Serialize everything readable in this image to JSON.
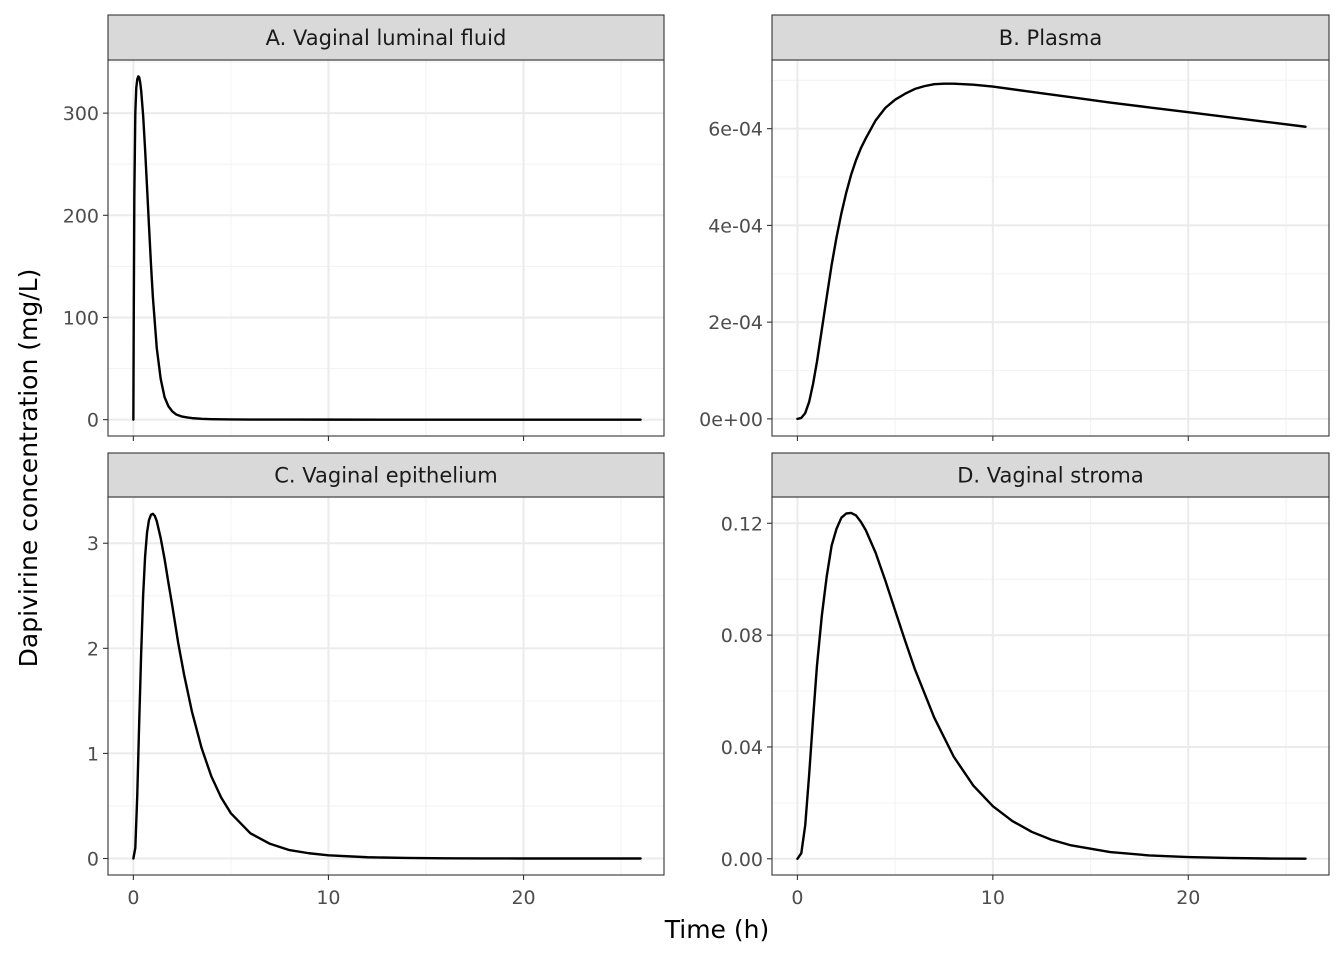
{
  "figure": {
    "xlabel": "Time (h)",
    "ylabel": "Dapivirine concentration (mg/L)"
  },
  "chart_data": [
    {
      "type": "line",
      "title": "A. Vaginal luminal fluid",
      "xlim": [
        -1.3,
        27.2
      ],
      "ylim": [
        -16,
        352
      ],
      "x_ticks": [
        0,
        10,
        20
      ],
      "x_tick_labels": [
        "0",
        "10",
        "20"
      ],
      "y_ticks": [
        0,
        100,
        200,
        300
      ],
      "y_tick_labels": [
        "0",
        "100",
        "200",
        "300"
      ],
      "series": [
        {
          "x": [
            0,
            0.02,
            0.05,
            0.1,
            0.15,
            0.2,
            0.25,
            0.3,
            0.35,
            0.4,
            0.5,
            0.6,
            0.7,
            0.8,
            0.9,
            1.0,
            1.2,
            1.4,
            1.6,
            1.8,
            2.0,
            2.2,
            2.5,
            2.8,
            3.0,
            3.5,
            4.0,
            5.0,
            6.0,
            8.0,
            10.0,
            15.0,
            20.0,
            26.0
          ],
          "y": [
            0,
            100,
            220,
            300,
            325,
            333,
            336,
            335,
            330,
            322,
            298,
            265,
            228,
            190,
            153,
            120,
            70,
            40,
            22,
            13,
            8,
            5,
            3,
            2,
            1.5,
            0.8,
            0.5,
            0.2,
            0.1,
            0.05,
            0.02,
            0,
            0,
            0
          ]
        }
      ]
    },
    {
      "type": "line",
      "title": "B. Plasma",
      "xlim": [
        -1.3,
        27.2
      ],
      "ylim": [
        -3.54e-05,
        0.000742
      ],
      "x_ticks": [
        0,
        10,
        20
      ],
      "x_tick_labels": [
        "0",
        "10",
        "20"
      ],
      "y_ticks": [
        0,
        0.0002,
        0.0004,
        0.0006
      ],
      "y_tick_labels": [
        "0e+00",
        "2e-04",
        "4e-04",
        "6e-04"
      ],
      "series": [
        {
          "x": [
            0,
            0.2,
            0.4,
            0.6,
            0.8,
            1.0,
            1.25,
            1.5,
            1.75,
            2.0,
            2.25,
            2.5,
            2.75,
            3.0,
            3.25,
            3.5,
            4.0,
            4.5,
            5.0,
            5.5,
            6.0,
            6.5,
            7.0,
            7.5,
            8.0,
            9.0,
            10.0,
            12.0,
            14.0,
            16.0,
            18.0,
            20.0,
            22.0,
            24.0,
            26.0
          ],
          "y": [
            0,
            2e-06,
            1.2e-05,
            3.5e-05,
            7.2e-05,
            0.000118,
            0.000185,
            0.000252,
            0.000318,
            0.000375,
            0.000425,
            0.000468,
            0.000505,
            0.000535,
            0.00056,
            0.00058,
            0.000617,
            0.000643,
            0.00066,
            0.000672,
            0.000682,
            0.000688,
            0.000692,
            0.000693,
            0.000693,
            0.000691,
            0.000687,
            0.000676,
            0.000665,
            0.000654,
            0.000644,
            0.000634,
            0.000624,
            0.000614,
            0.000604
          ]
        }
      ]
    },
    {
      "type": "line",
      "title": "C. Vaginal epithelium",
      "xlim": [
        -1.3,
        27.2
      ],
      "ylim": [
        -0.157,
        3.44
      ],
      "x_ticks": [
        0,
        10,
        20
      ],
      "x_tick_labels": [
        "0",
        "10",
        "20"
      ],
      "y_ticks": [
        0,
        1,
        2,
        3
      ],
      "y_tick_labels": [
        "0",
        "1",
        "2",
        "3"
      ],
      "series": [
        {
          "x": [
            0,
            0.1,
            0.2,
            0.3,
            0.4,
            0.5,
            0.6,
            0.7,
            0.8,
            0.9,
            1.0,
            1.1,
            1.2,
            1.4,
            1.6,
            1.8,
            2.0,
            2.3,
            2.6,
            3.0,
            3.5,
            4.0,
            4.5,
            5.0,
            6.0,
            7.0,
            8.0,
            9.0,
            10.0,
            12.0,
            14.0,
            16.0,
            18.0,
            20.0,
            22.0,
            24.0,
            26.0
          ],
          "y": [
            0,
            0.1,
            0.6,
            1.3,
            1.95,
            2.5,
            2.87,
            3.1,
            3.22,
            3.27,
            3.28,
            3.26,
            3.21,
            3.05,
            2.85,
            2.62,
            2.4,
            2.05,
            1.75,
            1.4,
            1.05,
            0.78,
            0.58,
            0.43,
            0.24,
            0.14,
            0.08,
            0.05,
            0.03,
            0.012,
            0.005,
            0.002,
            0.001,
            0,
            0,
            0,
            0
          ]
        }
      ]
    },
    {
      "type": "line",
      "title": "D. Vaginal stroma",
      "xlim": [
        -1.3,
        27.2
      ],
      "ylim": [
        -0.0058,
        0.1294
      ],
      "x_ticks": [
        0,
        10,
        20
      ],
      "x_tick_labels": [
        "0",
        "10",
        "20"
      ],
      "y_ticks": [
        0,
        0.04,
        0.08,
        0.12
      ],
      "y_tick_labels": [
        "0.00",
        "0.04",
        "0.08",
        "0.12"
      ],
      "series": [
        {
          "x": [
            0,
            0.2,
            0.4,
            0.6,
            0.8,
            1.0,
            1.25,
            1.5,
            1.75,
            2.0,
            2.25,
            2.5,
            2.75,
            3.0,
            3.25,
            3.5,
            4.0,
            4.5,
            5.0,
            5.5,
            6.0,
            7.0,
            8.0,
            9.0,
            10.0,
            11.0,
            12.0,
            13.0,
            14.0,
            16.0,
            18.0,
            20.0,
            22.0,
            24.0,
            26.0
          ],
          "y": [
            0,
            0.002,
            0.012,
            0.03,
            0.05,
            0.069,
            0.087,
            0.101,
            0.112,
            0.118,
            0.122,
            0.1235,
            0.1237,
            0.1228,
            0.1205,
            0.1175,
            0.1095,
            0.0995,
            0.0888,
            0.0782,
            0.068,
            0.0505,
            0.0365,
            0.0262,
            0.0188,
            0.0135,
            0.0096,
            0.0068,
            0.0048,
            0.0024,
            0.0012,
            0.0006,
            0.0003,
            0.0001,
            5e-05
          ]
        }
      ]
    }
  ]
}
